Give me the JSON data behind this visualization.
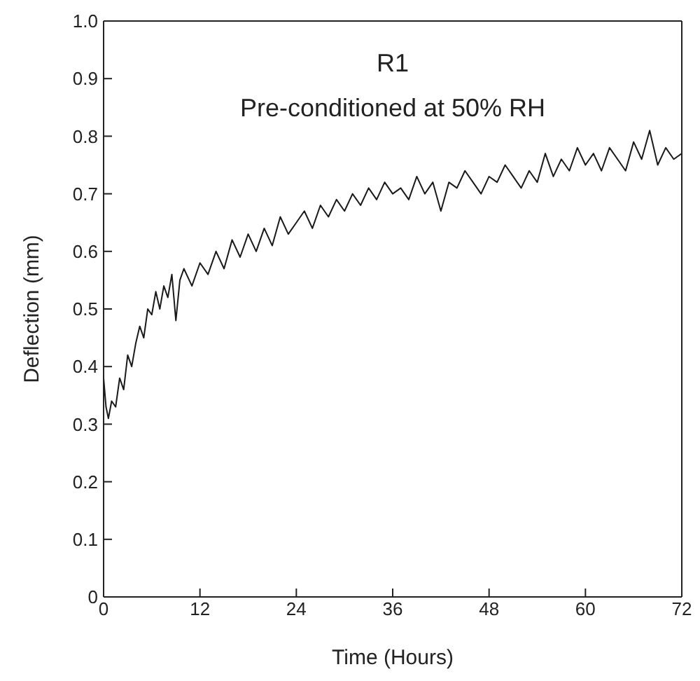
{
  "chart_data": {
    "type": "line",
    "title": "R1",
    "subtitle": "Pre-conditioned at 50% RH",
    "xlabel": "Time (Hours)",
    "ylabel": "Deflection (mm)",
    "x": [
      0,
      0.3,
      0.6,
      1,
      1.5,
      2,
      2.5,
      3,
      3.5,
      4,
      4.5,
      5,
      5.5,
      6,
      6.5,
      7,
      7.5,
      8,
      8.5,
      9,
      9.5,
      10,
      11,
      12,
      13,
      14,
      15,
      16,
      17,
      18,
      19,
      20,
      21,
      22,
      23,
      24,
      25,
      26,
      27,
      28,
      29,
      30,
      31,
      32,
      33,
      34,
      35,
      36,
      37,
      38,
      39,
      40,
      41,
      42,
      43,
      44,
      45,
      46,
      47,
      48,
      49,
      50,
      51,
      52,
      53,
      54,
      55,
      56,
      57,
      58,
      59,
      60,
      61,
      62,
      63,
      64,
      65,
      66,
      67,
      68,
      69,
      70,
      71,
      72
    ],
    "series": [
      {
        "color": "#1a1a1a",
        "values": [
          0.38,
          0.33,
          0.31,
          0.34,
          0.33,
          0.38,
          0.36,
          0.42,
          0.4,
          0.44,
          0.47,
          0.45,
          0.5,
          0.49,
          0.53,
          0.5,
          0.54,
          0.52,
          0.56,
          0.48,
          0.55,
          0.57,
          0.54,
          0.58,
          0.56,
          0.6,
          0.57,
          0.62,
          0.59,
          0.63,
          0.6,
          0.64,
          0.61,
          0.66,
          0.63,
          0.65,
          0.67,
          0.64,
          0.68,
          0.66,
          0.69,
          0.67,
          0.7,
          0.68,
          0.71,
          0.69,
          0.72,
          0.7,
          0.71,
          0.69,
          0.73,
          0.7,
          0.72,
          0.67,
          0.72,
          0.71,
          0.74,
          0.72,
          0.7,
          0.73,
          0.72,
          0.75,
          0.73,
          0.71,
          0.74,
          0.72,
          0.77,
          0.73,
          0.76,
          0.74,
          0.78,
          0.75,
          0.77,
          0.74,
          0.78,
          0.76,
          0.74,
          0.79,
          0.76,
          0.81,
          0.75,
          0.78,
          0.76,
          0.77
        ]
      }
    ],
    "xlim": [
      0,
      72
    ],
    "xticks": [
      0,
      12,
      24,
      36,
      48,
      60,
      72
    ],
    "ylim": [
      0,
      1
    ],
    "yticks": [
      0,
      0.1,
      0.2,
      0.3,
      0.4,
      0.5,
      0.6,
      0.7,
      0.8,
      0.9,
      {
        "value": 1,
        "label": "1.0"
      }
    ],
    "grid": false,
    "legend": false,
    "marker": "none",
    "line_style": "solid"
  }
}
